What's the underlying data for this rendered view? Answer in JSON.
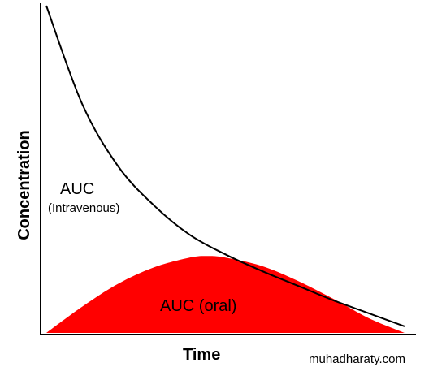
{
  "chart_data": {
    "type": "area",
    "xlabel": "Time",
    "ylabel": "Concentration",
    "grid": false,
    "series": [
      {
        "kind": "line",
        "label_line1": "AUC",
        "label_line2": "(Intravenous)",
        "color": "#000000",
        "x": [
          0,
          10,
          20,
          30,
          40,
          50,
          60,
          70,
          80,
          90,
          100
        ],
        "y": [
          100,
          70,
          51,
          39,
          30,
          24,
          19,
          14.5,
          10,
          6,
          2
        ]
      },
      {
        "kind": "area",
        "label": "AUC (oral)",
        "color": "#ff0000",
        "x": [
          0,
          10,
          20,
          30,
          40,
          45,
          50,
          60,
          70,
          80,
          90,
          100
        ],
        "y": [
          0,
          8,
          15,
          20,
          23,
          23.5,
          23,
          20.5,
          16,
          10.5,
          4.5,
          0
        ]
      }
    ]
  },
  "watermark": "muhadharaty.com"
}
